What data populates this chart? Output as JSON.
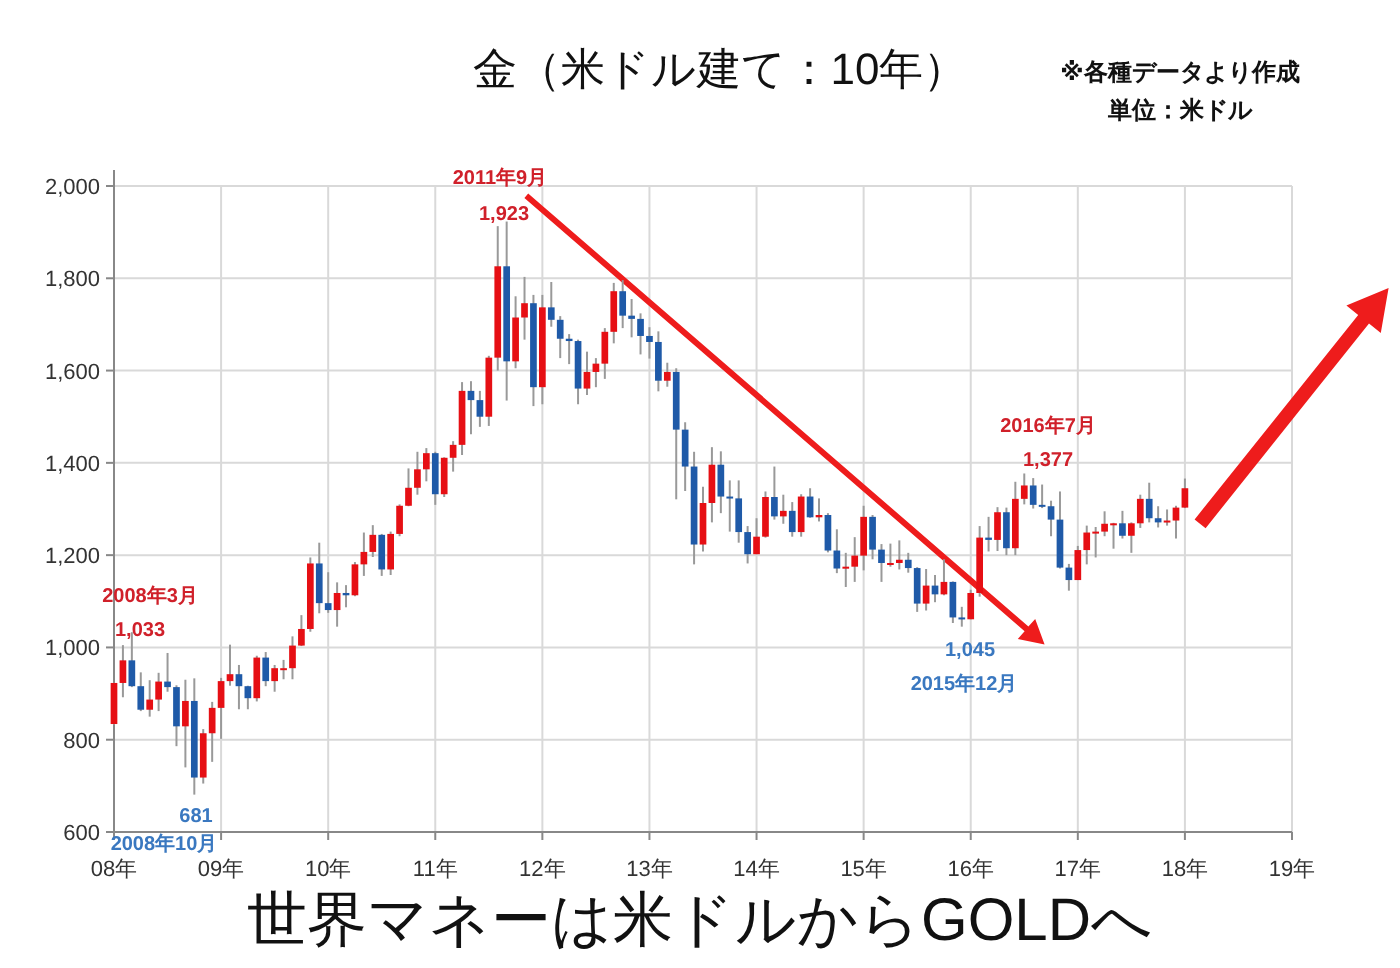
{
  "chart_data": {
    "type": "candlestick",
    "title": "金（米ドル建て：10年）",
    "annotations": [
      "※各種データより作成",
      "単位：米ドル",
      "世界マネーは米ドルからGOLDへ",
      "2008年3月",
      "1,033",
      "681",
      "2008年10月",
      "2011年9月",
      "1,923",
      "1,045",
      "2015年12月",
      "2016年7月",
      "1,377"
    ],
    "x": [
      "2008-01",
      "2008-02",
      "2008-03",
      "2008-04",
      "2008-05",
      "2008-06",
      "2008-07",
      "2008-08",
      "2008-09",
      "2008-10",
      "2008-11",
      "2008-12",
      "2009-01",
      "2009-02",
      "2009-03",
      "2009-04",
      "2009-05",
      "2009-06",
      "2009-07",
      "2009-08",
      "2009-09",
      "2009-10",
      "2009-11",
      "2009-12",
      "2010-01",
      "2010-02",
      "2010-03",
      "2010-04",
      "2010-05",
      "2010-06",
      "2010-07",
      "2010-08",
      "2010-09",
      "2010-10",
      "2010-11",
      "2010-12",
      "2011-01",
      "2011-02",
      "2011-03",
      "2011-04",
      "2011-05",
      "2011-06",
      "2011-07",
      "2011-08",
      "2011-09",
      "2011-10",
      "2011-11",
      "2011-12",
      "2012-01",
      "2012-02",
      "2012-03",
      "2012-04",
      "2012-05",
      "2012-06",
      "2012-07",
      "2012-08",
      "2012-09",
      "2012-10",
      "2012-11",
      "2012-12",
      "2013-01",
      "2013-02",
      "2013-03",
      "2013-04",
      "2013-05",
      "2013-06",
      "2013-07",
      "2013-08",
      "2013-09",
      "2013-10",
      "2013-11",
      "2013-12",
      "2014-01",
      "2014-02",
      "2014-03",
      "2014-04",
      "2014-05",
      "2014-06",
      "2014-07",
      "2014-08",
      "2014-09",
      "2014-10",
      "2014-11",
      "2014-12",
      "2015-01",
      "2015-02",
      "2015-03",
      "2015-04",
      "2015-05",
      "2015-06",
      "2015-07",
      "2015-08",
      "2015-09",
      "2015-10",
      "2015-11",
      "2015-12",
      "2016-01",
      "2016-02",
      "2016-03",
      "2016-04",
      "2016-05",
      "2016-06",
      "2016-07",
      "2016-08",
      "2016-09",
      "2016-10",
      "2016-11",
      "2016-12",
      "2017-01",
      "2017-02",
      "2017-03",
      "2017-04",
      "2017-05",
      "2017-06",
      "2017-07",
      "2017-08",
      "2017-09",
      "2017-10",
      "2017-11",
      "2017-12",
      "2018-01"
    ],
    "ohlc": [
      [
        834,
        924,
        832,
        923
      ],
      [
        923,
        1005,
        892,
        972
      ],
      [
        972,
        1033,
        914,
        916
      ],
      [
        916,
        946,
        862,
        865
      ],
      [
        865,
        929,
        850,
        887
      ],
      [
        887,
        945,
        862,
        926
      ],
      [
        926,
        988,
        904,
        914
      ],
      [
        914,
        918,
        786,
        829
      ],
      [
        829,
        930,
        740,
        884
      ],
      [
        884,
        933,
        681,
        718
      ],
      [
        718,
        823,
        705,
        814
      ],
      [
        814,
        882,
        752,
        869
      ],
      [
        869,
        934,
        802,
        927
      ],
      [
        927,
        1006,
        917,
        942
      ],
      [
        942,
        962,
        866,
        916
      ],
      [
        916,
        917,
        866,
        890
      ],
      [
        890,
        982,
        883,
        978
      ],
      [
        978,
        990,
        916,
        927
      ],
      [
        927,
        962,
        904,
        955
      ],
      [
        955,
        973,
        931,
        955
      ],
      [
        955,
        1024,
        931,
        1004
      ],
      [
        1004,
        1070,
        1003,
        1040
      ],
      [
        1040,
        1195,
        1034,
        1182
      ],
      [
        1182,
        1227,
        1074,
        1096
      ],
      [
        1096,
        1163,
        1075,
        1081
      ],
      [
        1081,
        1141,
        1045,
        1118
      ],
      [
        1118,
        1135,
        1087,
        1113
      ],
      [
        1113,
        1185,
        1111,
        1180
      ],
      [
        1180,
        1249,
        1155,
        1207
      ],
      [
        1207,
        1265,
        1196,
        1244
      ],
      [
        1244,
        1246,
        1155,
        1169
      ],
      [
        1169,
        1251,
        1157,
        1246
      ],
      [
        1246,
        1310,
        1241,
        1307
      ],
      [
        1307,
        1388,
        1306,
        1346
      ],
      [
        1346,
        1424,
        1331,
        1386
      ],
      [
        1386,
        1432,
        1360,
        1421
      ],
      [
        1421,
        1424,
        1309,
        1332
      ],
      [
        1332,
        1412,
        1326,
        1411
      ],
      [
        1411,
        1447,
        1381,
        1439
      ],
      [
        1439,
        1575,
        1417,
        1556
      ],
      [
        1556,
        1577,
        1462,
        1536
      ],
      [
        1536,
        1556,
        1478,
        1500
      ],
      [
        1500,
        1632,
        1480,
        1628
      ],
      [
        1628,
        1913,
        1600,
        1826
      ],
      [
        1826,
        1923,
        1535,
        1620
      ],
      [
        1620,
        1761,
        1605,
        1715
      ],
      [
        1715,
        1803,
        1667,
        1746
      ],
      [
        1746,
        1764,
        1523,
        1564
      ],
      [
        1564,
        1764,
        1527,
        1737
      ],
      [
        1737,
        1792,
        1695,
        1710
      ],
      [
        1710,
        1718,
        1627,
        1669
      ],
      [
        1669,
        1679,
        1614,
        1664
      ],
      [
        1664,
        1667,
        1527,
        1561
      ],
      [
        1561,
        1641,
        1547,
        1597
      ],
      [
        1597,
        1627,
        1564,
        1615
      ],
      [
        1615,
        1692,
        1582,
        1684
      ],
      [
        1684,
        1790,
        1659,
        1772
      ],
      [
        1772,
        1796,
        1692,
        1719
      ],
      [
        1719,
        1755,
        1672,
        1712
      ],
      [
        1712,
        1724,
        1635,
        1675
      ],
      [
        1675,
        1694,
        1626,
        1662
      ],
      [
        1662,
        1685,
        1555,
        1578
      ],
      [
        1578,
        1617,
        1565,
        1597
      ],
      [
        1597,
        1605,
        1321,
        1472
      ],
      [
        1472,
        1488,
        1339,
        1392
      ],
      [
        1392,
        1424,
        1180,
        1223
      ],
      [
        1223,
        1348,
        1208,
        1313
      ],
      [
        1313,
        1434,
        1271,
        1396
      ],
      [
        1396,
        1425,
        1291,
        1327
      ],
      [
        1327,
        1362,
        1251,
        1323
      ],
      [
        1323,
        1362,
        1227,
        1250
      ],
      [
        1250,
        1263,
        1182,
        1202
      ],
      [
        1202,
        1280,
        1202,
        1240
      ],
      [
        1240,
        1338,
        1238,
        1326
      ],
      [
        1326,
        1392,
        1277,
        1284
      ],
      [
        1284,
        1331,
        1268,
        1296
      ],
      [
        1296,
        1315,
        1240,
        1250
      ],
      [
        1250,
        1332,
        1240,
        1327
      ],
      [
        1327,
        1345,
        1281,
        1282
      ],
      [
        1282,
        1323,
        1273,
        1287
      ],
      [
        1287,
        1291,
        1206,
        1210
      ],
      [
        1210,
        1256,
        1161,
        1171
      ],
      [
        1171,
        1205,
        1131,
        1175
      ],
      [
        1175,
        1239,
        1142,
        1199
      ],
      [
        1199,
        1307,
        1167,
        1283
      ],
      [
        1283,
        1287,
        1191,
        1212
      ],
      [
        1212,
        1224,
        1142,
        1183
      ],
      [
        1183,
        1225,
        1175,
        1183
      ],
      [
        1183,
        1232,
        1169,
        1190
      ],
      [
        1190,
        1205,
        1162,
        1172
      ],
      [
        1172,
        1174,
        1077,
        1095
      ],
      [
        1095,
        1170,
        1080,
        1134
      ],
      [
        1134,
        1157,
        1098,
        1115
      ],
      [
        1115,
        1191,
        1113,
        1142
      ],
      [
        1142,
        1143,
        1053,
        1065
      ],
      [
        1065,
        1088,
        1045,
        1061
      ],
      [
        1061,
        1125,
        1061,
        1118
      ],
      [
        1118,
        1263,
        1110,
        1238
      ],
      [
        1238,
        1283,
        1208,
        1233
      ],
      [
        1233,
        1304,
        1209,
        1293
      ],
      [
        1293,
        1303,
        1200,
        1215
      ],
      [
        1215,
        1359,
        1200,
        1322
      ],
      [
        1322,
        1377,
        1310,
        1351
      ],
      [
        1351,
        1367,
        1301,
        1309
      ],
      [
        1309,
        1353,
        1302,
        1306
      ],
      [
        1306,
        1318,
        1241,
        1277
      ],
      [
        1277,
        1338,
        1171,
        1173
      ],
      [
        1173,
        1181,
        1123,
        1146
      ],
      [
        1146,
        1220,
        1146,
        1211
      ],
      [
        1211,
        1264,
        1180,
        1249
      ],
      [
        1249,
        1261,
        1195,
        1251
      ],
      [
        1251,
        1295,
        1241,
        1268
      ],
      [
        1268,
        1270,
        1214,
        1269
      ],
      [
        1269,
        1296,
        1236,
        1242
      ],
      [
        1242,
        1271,
        1205,
        1269
      ],
      [
        1269,
        1331,
        1259,
        1322
      ],
      [
        1322,
        1357,
        1271,
        1280
      ],
      [
        1280,
        1306,
        1260,
        1271
      ],
      [
        1271,
        1299,
        1264,
        1275
      ],
      [
        1275,
        1307,
        1236,
        1303
      ],
      [
        1303,
        1366,
        1302,
        1345
      ]
    ],
    "colors": [
      "#e60f14",
      "#e60f14",
      "#1f5aa8",
      "#1f5aa8",
      "#e60f14",
      "#e60f14",
      "#1f5aa8",
      "#1f5aa8",
      "#e60f14",
      "#1f5aa8",
      "#e60f14",
      "#e60f14",
      "#e60f14",
      "#e60f14",
      "#1f5aa8",
      "#1f5aa8",
      "#e60f14",
      "#1f5aa8",
      "#e60f14",
      "#e60f14",
      "#e60f14",
      "#e60f14",
      "#e60f14",
      "#1f5aa8",
      "#1f5aa8",
      "#e60f14",
      "#1f5aa8",
      "#e60f14",
      "#e60f14",
      "#e60f14",
      "#1f5aa8",
      "#e60f14",
      "#e60f14",
      "#e60f14",
      "#e60f14",
      "#e60f14",
      "#1f5aa8",
      "#e60f14",
      "#e60f14",
      "#e60f14",
      "#1f5aa8",
      "#1f5aa8",
      "#e60f14",
      "#e60f14",
      "#1f5aa8",
      "#e60f14",
      "#e60f14",
      "#1f5aa8",
      "#e60f14",
      "#1f5aa8",
      "#1f5aa8",
      "#1f5aa8",
      "#1f5aa8",
      "#e60f14",
      "#e60f14",
      "#e60f14",
      "#e60f14",
      "#1f5aa8",
      "#1f5aa8",
      "#1f5aa8",
      "#1f5aa8",
      "#1f5aa8",
      "#e60f14",
      "#1f5aa8",
      "#1f5aa8",
      "#1f5aa8",
      "#e60f14",
      "#e60f14",
      "#1f5aa8",
      "#1f5aa8",
      "#1f5aa8",
      "#1f5aa8",
      "#e60f14",
      "#e60f14",
      "#1f5aa8",
      "#e60f14",
      "#1f5aa8",
      "#e60f14",
      "#1f5aa8",
      "#e60f14",
      "#1f5aa8",
      "#1f5aa8",
      "#e60f14",
      "#e60f14",
      "#e60f14",
      "#1f5aa8",
      "#1f5aa8",
      "#e60f14",
      "#e60f14",
      "#1f5aa8",
      "#1f5aa8",
      "#e60f14",
      "#1f5aa8",
      "#e60f14",
      "#1f5aa8",
      "#1f5aa8",
      "#e60f14",
      "#e60f14",
      "#1f5aa8",
      "#e60f14",
      "#1f5aa8",
      "#e60f14",
      "#e60f14",
      "#1f5aa8",
      "#1f5aa8",
      "#1f5aa8",
      "#1f5aa8",
      "#1f5aa8",
      "#e60f14",
      "#e60f14",
      "#e60f14",
      "#e60f14",
      "#e60f14",
      "#1f5aa8",
      "#e60f14",
      "#e60f14",
      "#1f5aa8",
      "#1f5aa8",
      "#e60f14",
      "#e60f14",
      "#e60f14"
    ],
    "xlim": [
      "2008-01",
      "2019-01"
    ],
    "xticks": [
      {
        "value": "2008",
        "label": "08年"
      },
      {
        "value": "2009",
        "label": "09年"
      },
      {
        "value": "2010",
        "label": "10年"
      },
      {
        "value": "2011",
        "label": "11年"
      },
      {
        "value": "2012",
        "label": "12年"
      },
      {
        "value": "2013",
        "label": "13年"
      },
      {
        "value": "2014",
        "label": "14年"
      },
      {
        "value": "2015",
        "label": "15年"
      },
      {
        "value": "2016",
        "label": "16年"
      },
      {
        "value": "2017",
        "label": "17年"
      },
      {
        "value": "2018",
        "label": "18年"
      },
      {
        "value": "2019",
        "label": "19年"
      }
    ],
    "ylim": [
      600,
      2000
    ],
    "yticks": [
      600,
      800,
      {
        "value": 1000,
        "label": "1,000"
      },
      {
        "value": 1200,
        "label": "1,200"
      },
      {
        "value": 1400,
        "label": "1,400"
      },
      {
        "value": 1600,
        "label": "1,600"
      },
      {
        "value": 1800,
        "label": "1,800"
      },
      {
        "value": 2000,
        "label": "2,000"
      }
    ],
    "grid": true
  }
}
